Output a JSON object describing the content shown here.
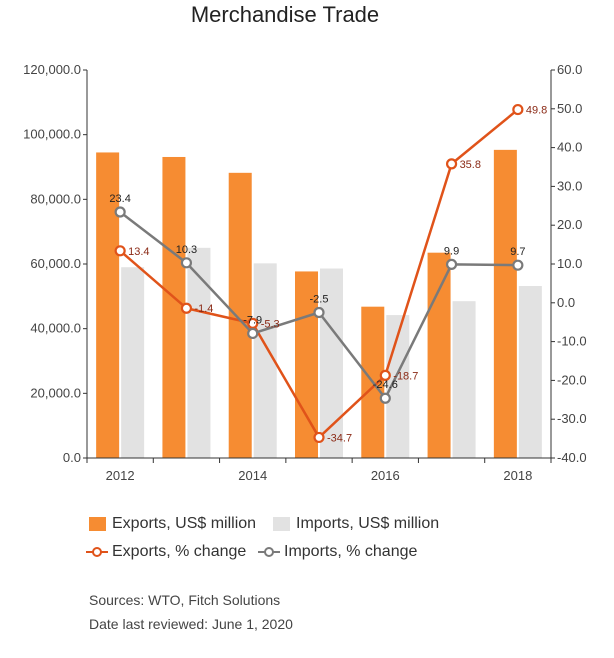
{
  "chart_data": {
    "type": "bar",
    "title": "Merchandise Trade",
    "x": [
      2012,
      2013,
      2014,
      2015,
      2016,
      2017,
      2018
    ],
    "x_tick_labels": [
      "2012",
      "2014",
      "2016",
      "2018"
    ],
    "y_left": {
      "range": [
        0,
        120000
      ],
      "ticks": [
        "0.0",
        "20,000.0",
        "40,000.0",
        "60,000.0",
        "80,000.0",
        "100,000.0",
        "120,000.0"
      ]
    },
    "y_right": {
      "range": [
        -40,
        60
      ],
      "ticks": [
        "-40.0",
        "-30.0",
        "-20.0",
        "-10.0",
        "0.0",
        "10.0",
        "20.0",
        "30.0",
        "40.0",
        "50.0",
        "60.0"
      ]
    },
    "series": [
      {
        "name": "Exports, US$ million",
        "kind": "bar",
        "axis": "left",
        "color": "#f68c32",
        "values": [
          94500,
          93100,
          88200,
          57700,
          46800,
          63500,
          95300
        ]
      },
      {
        "name": "Imports, US$ million",
        "kind": "bar",
        "axis": "left",
        "color": "#e2e2e2",
        "values": [
          59000,
          65000,
          60200,
          58600,
          44200,
          48500,
          53200
        ]
      },
      {
        "name": "Exports, % change",
        "kind": "line",
        "axis": "right",
        "color": "#e0531a",
        "label_color": "#8b2a16",
        "values": [
          13.4,
          -1.4,
          -5.3,
          -34.7,
          -18.7,
          35.8,
          49.8
        ],
        "labels": [
          "13.4",
          "-1.4",
          "-5.3",
          "-34.7",
          "-18.7",
          "35.8",
          "49.8"
        ]
      },
      {
        "name": "Imports, % change",
        "kind": "line",
        "axis": "right",
        "color": "#7a7a7a",
        "label_color": "#222222",
        "values": [
          23.4,
          10.3,
          -7.9,
          -2.5,
          -24.6,
          9.9,
          9.7
        ],
        "labels": [
          "23.4",
          "10.3",
          "-7.9",
          "-2.5",
          "-24.6",
          "9.9",
          "9.7"
        ]
      }
    ],
    "grid": false,
    "legend_position": "bottom"
  },
  "footer": {
    "sources": "Sources: WTO, Fitch Solutions",
    "date": "Date last reviewed: June 1, 2020"
  }
}
